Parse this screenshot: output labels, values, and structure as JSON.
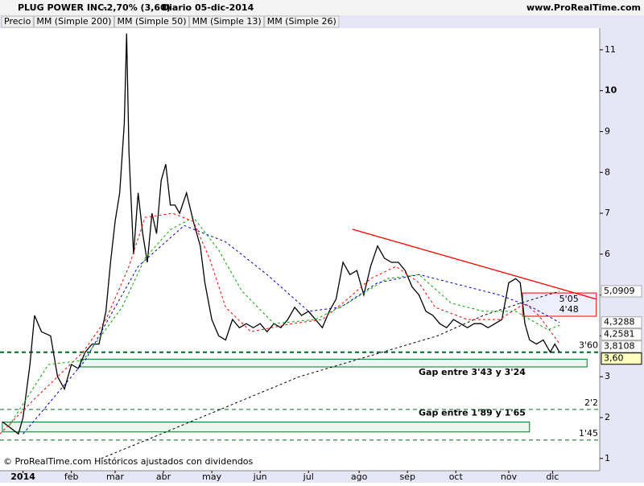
{
  "header": {
    "symbol": "PLUG POWER INC.",
    "change": "-2,70% (3,60)",
    "period": "Diario",
    "date": "05-dic-2014",
    "site": "www.ProRealTime.com"
  },
  "footer": "© ProRealTime.com  Históricos ajustados con dividendos",
  "chart_data": {
    "type": "line",
    "xlim": [
      -10,
      250.5
    ],
    "ylim": [
      0.7,
      11.53
    ],
    "xticks": [
      {
        "value": 0,
        "label": "2014"
      },
      {
        "value": 21,
        "label": "feb"
      },
      {
        "value": 40,
        "label": "mar"
      },
      {
        "value": 61,
        "label": "abr"
      },
      {
        "value": 82,
        "label": "may"
      },
      {
        "value": 103,
        "label": "jun"
      },
      {
        "value": 124,
        "label": "jul"
      },
      {
        "value": 146,
        "label": "ago"
      },
      {
        "value": 167,
        "label": "sep"
      },
      {
        "value": 188,
        "label": "oct"
      },
      {
        "value": 211,
        "label": "nov"
      },
      {
        "value": 230,
        "label": "dic"
      }
    ],
    "yticks": [
      1,
      2,
      3,
      4,
      5,
      6,
      7,
      8,
      9,
      10,
      11
    ],
    "series": [
      {
        "name": "Precio",
        "color": "#000000",
        "dashed": false,
        "last_label": "3,60",
        "x": [
          -9,
          -2,
          0,
          3,
          5,
          8,
          12,
          15,
          18,
          21,
          24,
          27,
          30,
          33,
          36,
          38,
          40,
          42,
          44,
          45,
          46,
          48,
          50,
          52,
          54,
          56,
          58,
          60,
          62,
          64,
          66,
          68,
          71,
          74,
          77,
          79,
          82,
          85,
          88,
          91,
          94,
          97,
          100,
          103,
          106,
          109,
          112,
          115,
          118,
          121,
          124,
          127,
          130,
          133,
          136,
          139,
          142,
          145,
          148,
          151,
          154,
          157,
          160,
          163,
          166,
          169,
          172,
          175,
          178,
          181,
          184,
          187,
          190,
          193,
          196,
          199,
          202,
          205,
          208,
          211,
          214,
          216,
          218,
          220,
          223,
          226,
          229,
          231,
          233
        ],
        "values": [
          1.9,
          1.6,
          2.0,
          3.3,
          4.5,
          4.1,
          4.0,
          3.0,
          2.7,
          3.3,
          3.2,
          3.6,
          3.8,
          3.8,
          4.6,
          5.8,
          6.8,
          7.5,
          9.2,
          11.4,
          8.5,
          6.0,
          7.5,
          6.5,
          5.8,
          7.0,
          6.5,
          7.8,
          8.2,
          7.2,
          7.2,
          7.0,
          7.5,
          6.8,
          6.2,
          5.3,
          4.4,
          4.0,
          3.9,
          4.4,
          4.2,
          4.3,
          4.2,
          4.3,
          4.1,
          4.3,
          4.2,
          4.4,
          4.7,
          4.5,
          4.6,
          4.4,
          4.2,
          4.6,
          4.9,
          5.8,
          5.5,
          5.6,
          5.0,
          5.7,
          6.2,
          5.9,
          5.8,
          5.8,
          5.6,
          5.2,
          5.0,
          4.6,
          4.5,
          4.3,
          4.2,
          4.4,
          4.3,
          4.2,
          4.3,
          4.3,
          4.2,
          4.3,
          4.4,
          5.3,
          5.4,
          5.3,
          4.3,
          3.9,
          3.8,
          3.9,
          3.6,
          3.8,
          3.6
        ]
      },
      {
        "name": "MM (Simple 200)",
        "color": "#000000",
        "dashed": true,
        "last_label": "5,0909",
        "x": [
          34,
          60,
          90,
          120,
          150,
          180,
          200,
          216,
          233
        ],
        "values": [
          1.0,
          1.6,
          2.3,
          3.0,
          3.5,
          4.0,
          4.5,
          4.8,
          5.0909
        ]
      },
      {
        "name": "MM (Simple 50)",
        "color": "#0000cc",
        "dashed": true,
        "last_label": "4,3288",
        "x": [
          0,
          27,
          50,
          70,
          88,
          106,
          124,
          138,
          154,
          172,
          193,
          207,
          221,
          233
        ],
        "values": [
          1.6,
          3.4,
          5.7,
          6.7,
          6.3,
          5.5,
          4.6,
          4.7,
          5.3,
          5.5,
          5.2,
          5.0,
          4.7,
          4.3288
        ]
      },
      {
        "name": "MM (Simple 13)",
        "color": "#ff0000",
        "dashed": true,
        "last_label": "3,8108",
        "x": [
          -10,
          4,
          15,
          26,
          36,
          46,
          53,
          65,
          74,
          81,
          88,
          99,
          117,
          130,
          141,
          151,
          162,
          172,
          179,
          193,
          207,
          218,
          224,
          233
        ],
        "values": [
          1.6,
          2.4,
          3.0,
          3.6,
          4.4,
          5.7,
          6.9,
          7.0,
          6.8,
          5.9,
          4.7,
          4.1,
          4.3,
          4.4,
          4.9,
          5.4,
          5.7,
          5.3,
          4.7,
          4.4,
          4.4,
          4.8,
          4.5,
          3.8108
        ]
      },
      {
        "name": "MM (Simple 26)",
        "color": "#00aa00",
        "dashed": true,
        "last_label": "4,2581",
        "x": [
          -6,
          11,
          26,
          43,
          53,
          64,
          74,
          85,
          95,
          109,
          127,
          141,
          158,
          172,
          186,
          200,
          214,
          228,
          233
        ],
        "values": [
          1.8,
          3.3,
          3.4,
          4.7,
          5.9,
          6.6,
          6.9,
          6.1,
          5.1,
          4.3,
          4.4,
          4.8,
          5.4,
          5.5,
          4.8,
          4.6,
          4.6,
          4.15,
          4.2581
        ]
      }
    ],
    "trendline": {
      "color": "#ff0000",
      "x": [
        143,
        249
      ],
      "values": [
        6.61,
        4.9
      ]
    },
    "levels": [
      {
        "value": 3.6,
        "label": "3'60"
      },
      {
        "value": 2.2,
        "label": "2'2"
      },
      {
        "value": 1.45,
        "label": "1'45"
      }
    ],
    "gaps": [
      {
        "x": [
          25,
          245
        ],
        "top": 3.43,
        "bottom": 3.24,
        "label": "Gap entre 3'43 y 3'24"
      },
      {
        "x": [
          -9,
          220
        ],
        "top": 1.89,
        "bottom": 1.65,
        "label": "Gap entre 1'89 y 1'65"
      }
    ],
    "zone": {
      "x": [
        217,
        249
      ],
      "top": 5.05,
      "bottom": 4.48,
      "top_label": "5'05",
      "bottom_label": "4'48"
    }
  }
}
